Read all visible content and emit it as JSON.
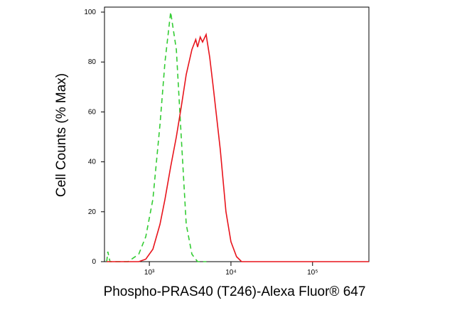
{
  "chart_data": {
    "type": "line",
    "xlabel": "Phospho-PRAS40 (T246)-Alexa Fluor® 647",
    "ylabel": "Cell Counts (% Max)",
    "xscale": "log",
    "xlim": [
      282,
      490000
    ],
    "ylim": [
      0,
      102
    ],
    "xticks": [
      {
        "value": 1000,
        "label": "10³"
      },
      {
        "value": 10000,
        "label": "10⁴"
      },
      {
        "value": 100000,
        "label": "10⁵"
      }
    ],
    "yticks": [
      0,
      20,
      40,
      60,
      80,
      100
    ],
    "series": [
      {
        "color": "#33cc33",
        "dash": true,
        "x": [
          300,
          310,
          330,
          548,
          741,
          905,
          1105,
          1350,
          1554,
          1823,
          2140,
          2462,
          2832,
          3326,
          3900,
          5000
        ],
        "values": [
          0,
          4,
          0,
          0,
          3,
          10,
          25,
          55,
          80,
          100,
          85,
          50,
          15,
          3,
          0,
          0
        ]
      },
      {
        "color": "#e8141c",
        "dash": false,
        "x": [
          300,
          741,
          905,
          1105,
          1350,
          1554,
          1823,
          2140,
          2462,
          2832,
          3326,
          3700,
          3900,
          4200,
          4487,
          4960,
          5487,
          6070,
          7400,
          8690,
          10000,
          11700,
          13500,
          44800,
          490000
        ],
        "values": [
          0,
          0,
          1,
          5,
          15,
          25,
          38,
          50,
          62,
          75,
          85,
          89,
          86,
          90,
          88,
          91,
          82,
          70,
          45,
          20,
          8,
          2,
          0,
          0,
          0
        ]
      }
    ]
  }
}
